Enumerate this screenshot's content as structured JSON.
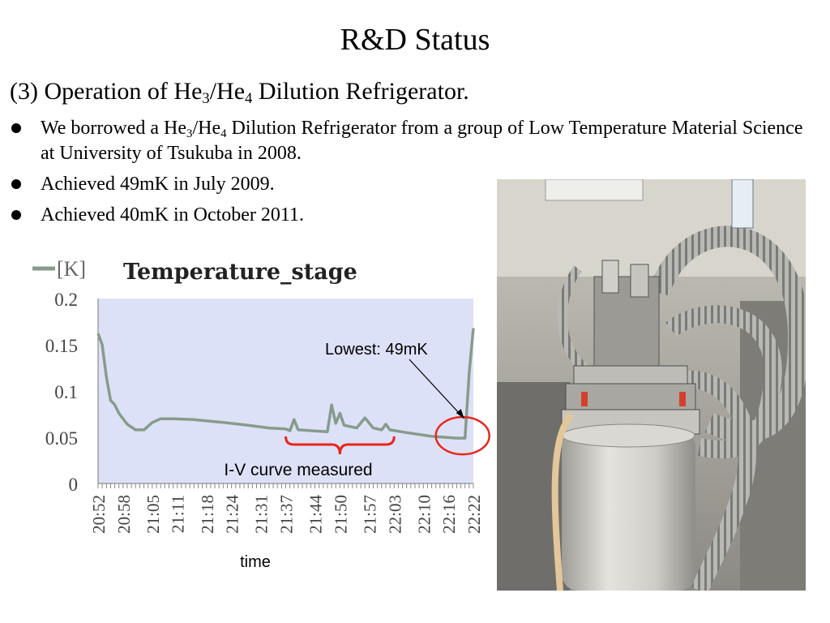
{
  "slide": {
    "title": "R&D Status",
    "subtitle": {
      "prefix": "(3) Operation of He",
      "sub1": "3",
      "mid": "/He",
      "sub2": "4",
      "suffix": " Dilution Refrigerator."
    },
    "bullets": [
      {
        "prefix": "We borrowed a He",
        "sub1": "3",
        "mid": "/He",
        "sub2": "4",
        "suffix": " Dilution Refrigerator from a group of Low Temperature Material Science at University of Tsukuba in 2008."
      },
      {
        "text": "Achieved 49mK in July 2009."
      },
      {
        "text": "Achieved 40mK in October 2011."
      }
    ]
  },
  "colors": {
    "series": "#869c8c",
    "plot_bg": "#dde1f7",
    "annotation_circle": "#e8261c",
    "brace": "#e8261c"
  },
  "chart_data": {
    "type": "line",
    "title": "Temperature_stage",
    "legend": {
      "label": "[K]",
      "position": "top-left"
    },
    "xlabel": "time",
    "ylabel": "",
    "ylim": [
      0,
      0.2
    ],
    "yticks": [
      "0",
      "0.05",
      "0.1",
      "0.15",
      "0.2"
    ],
    "ytick_values": [
      0,
      0.05,
      0.1,
      0.15,
      0.2
    ],
    "xlim": [
      "20:52",
      "22:22"
    ],
    "xtick_labels": [
      "20:52",
      "20:58",
      "21:05",
      "21:11",
      "21:18",
      "21:24",
      "21:31",
      "21:37",
      "21:44",
      "21:50",
      "21:57",
      "22:03",
      "22:10",
      "22:16",
      "22:22"
    ],
    "grid": false,
    "series": [
      {
        "name": "[K]",
        "points": [
          [
            "20:52",
            0.162
          ],
          [
            "20:53",
            0.15
          ],
          [
            "20:54",
            0.115
          ],
          [
            "20:55",
            0.09
          ],
          [
            "20:56",
            0.085
          ],
          [
            "20:57",
            0.076
          ],
          [
            "20:59",
            0.064
          ],
          [
            "21:01",
            0.058
          ],
          [
            "21:03",
            0.058
          ],
          [
            "21:05",
            0.066
          ],
          [
            "21:07",
            0.07
          ],
          [
            "21:10",
            0.07
          ],
          [
            "21:15",
            0.069
          ],
          [
            "21:22",
            0.066
          ],
          [
            "21:28",
            0.063
          ],
          [
            "21:33",
            0.06
          ],
          [
            "21:37",
            0.059
          ],
          [
            "21:38",
            0.057
          ],
          [
            "21:39",
            0.069
          ],
          [
            "21:40",
            0.058
          ],
          [
            "21:47",
            0.056
          ],
          [
            "21:48",
            0.085
          ],
          [
            "21:49",
            0.065
          ],
          [
            "21:50",
            0.076
          ],
          [
            "21:51",
            0.063
          ],
          [
            "21:54",
            0.06
          ],
          [
            "21:56",
            0.071
          ],
          [
            "21:58",
            0.06
          ],
          [
            "22:00",
            0.058
          ],
          [
            "22:01",
            0.064
          ],
          [
            "22:02",
            0.058
          ],
          [
            "22:06",
            0.055
          ],
          [
            "22:12",
            0.051
          ],
          [
            "22:18",
            0.049
          ],
          [
            "22:20",
            0.049
          ],
          [
            "22:21",
            0.12
          ],
          [
            "22:22",
            0.168
          ]
        ]
      }
    ],
    "annotations": [
      {
        "text": "Lowest: 49mK",
        "points_to": [
          "22:20",
          0.049
        ]
      },
      {
        "text": "I-V curve measured",
        "range": [
          "21:37",
          "22:03"
        ]
      }
    ]
  }
}
